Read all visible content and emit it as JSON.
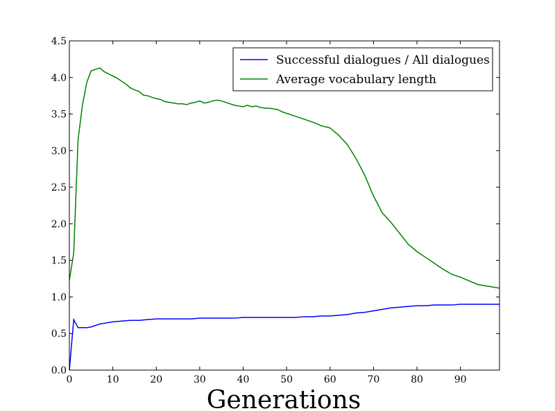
{
  "chart_data": {
    "type": "line",
    "title": "",
    "xlabel": "Generations",
    "ylabel": "",
    "xlim": [
      0,
      99
    ],
    "ylim": [
      0.0,
      4.5
    ],
    "xticks": [
      0,
      10,
      20,
      30,
      40,
      50,
      60,
      70,
      80,
      90
    ],
    "xtick_labels": [
      "0",
      "10",
      "20",
      "30",
      "40",
      "50",
      "60",
      "70",
      "80",
      "90"
    ],
    "yticks": [
      0.0,
      0.5,
      1.0,
      1.5,
      2.0,
      2.5,
      3.0,
      3.5,
      4.0,
      4.5
    ],
    "ytick_labels": [
      "0.0",
      "0.5",
      "1.0",
      "1.5",
      "2.0",
      "2.5",
      "3.0",
      "3.5",
      "4.0",
      "4.5"
    ],
    "grid": false,
    "legend_position": "top-right",
    "series": [
      {
        "name": "Successful dialogues / All dialogues",
        "color": "#0000ff",
        "x": [
          0,
          1,
          2,
          3,
          4,
          5,
          6,
          7,
          8,
          9,
          10,
          12,
          14,
          16,
          18,
          20,
          22,
          24,
          26,
          28,
          30,
          32,
          34,
          36,
          38,
          40,
          42,
          44,
          46,
          48,
          50,
          52,
          54,
          56,
          58,
          60,
          62,
          64,
          66,
          68,
          70,
          72,
          74,
          76,
          78,
          80,
          82,
          84,
          86,
          88,
          90,
          92,
          94,
          96,
          99
        ],
        "y": [
          0.0,
          0.69,
          0.58,
          0.58,
          0.58,
          0.59,
          0.61,
          0.63,
          0.64,
          0.65,
          0.66,
          0.67,
          0.68,
          0.68,
          0.69,
          0.7,
          0.7,
          0.7,
          0.7,
          0.7,
          0.71,
          0.71,
          0.71,
          0.71,
          0.71,
          0.72,
          0.72,
          0.72,
          0.72,
          0.72,
          0.72,
          0.72,
          0.73,
          0.73,
          0.74,
          0.74,
          0.75,
          0.76,
          0.78,
          0.79,
          0.81,
          0.83,
          0.85,
          0.86,
          0.87,
          0.88,
          0.88,
          0.89,
          0.89,
          0.89,
          0.9,
          0.9,
          0.9,
          0.9,
          0.9
        ]
      },
      {
        "name": "Average vocabulary length",
        "color": "#008000",
        "x": [
          0,
          1,
          2,
          3,
          4,
          5,
          6,
          7,
          8,
          9,
          10,
          11,
          12,
          13,
          14,
          15,
          16,
          17,
          18,
          19,
          20,
          21,
          22,
          23,
          24,
          25,
          26,
          27,
          28,
          29,
          30,
          31,
          32,
          33,
          34,
          35,
          36,
          37,
          38,
          39,
          40,
          41,
          42,
          43,
          44,
          45,
          46,
          47,
          48,
          49,
          50,
          52,
          54,
          56,
          58,
          60,
          62,
          64,
          66,
          68,
          70,
          72,
          74,
          76,
          78,
          80,
          82,
          84,
          86,
          88,
          90,
          92,
          94,
          96,
          99
        ],
        "y": [
          1.23,
          1.6,
          3.15,
          3.62,
          3.93,
          4.09,
          4.11,
          4.13,
          4.08,
          4.05,
          4.02,
          3.99,
          3.95,
          3.91,
          3.86,
          3.83,
          3.81,
          3.76,
          3.75,
          3.73,
          3.71,
          3.7,
          3.67,
          3.66,
          3.65,
          3.64,
          3.64,
          3.63,
          3.65,
          3.66,
          3.68,
          3.65,
          3.66,
          3.68,
          3.69,
          3.68,
          3.66,
          3.64,
          3.62,
          3.61,
          3.6,
          3.62,
          3.6,
          3.61,
          3.59,
          3.58,
          3.58,
          3.57,
          3.56,
          3.53,
          3.51,
          3.47,
          3.43,
          3.39,
          3.34,
          3.31,
          3.21,
          3.08,
          2.89,
          2.66,
          2.38,
          2.15,
          2.02,
          1.87,
          1.72,
          1.62,
          1.54,
          1.46,
          1.38,
          1.31,
          1.27,
          1.22,
          1.17,
          1.15,
          1.12
        ]
      }
    ]
  }
}
